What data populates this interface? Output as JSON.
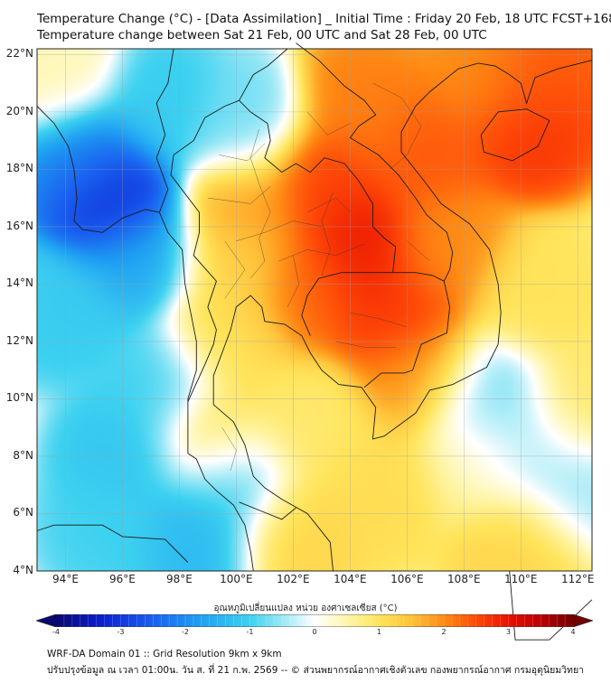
{
  "title_line1": "Temperature Change (°C) - [Data Assimilation] _ Initial Time : Friday 20 Feb, 18 UTC FCST+168",
  "title_line2": "Temperature change between Sat 21 Feb, 00 UTC and Sat 28 Feb, 00 UTC",
  "map": {
    "lon_range": [
      93,
      112.5
    ],
    "lat_range": [
      4,
      22.2
    ],
    "lat_ticks": [
      "22°N",
      "20°N",
      "18°N",
      "16°N",
      "14°N",
      "12°N",
      "10°N",
      "8°N",
      "6°N",
      "4°N"
    ],
    "lat_values": [
      22,
      20,
      18,
      16,
      14,
      12,
      10,
      8,
      6,
      4
    ],
    "lon_ticks": [
      "94°E",
      "96°E",
      "98°E",
      "100°E",
      "102°E",
      "104°E",
      "106°E",
      "108°E",
      "110°E",
      "112°E"
    ],
    "lon_values": [
      94,
      96,
      98,
      100,
      102,
      104,
      106,
      108,
      110,
      112
    ],
    "field_blobs": [
      {
        "lon": 104.3,
        "lat": 15.3,
        "value": 3.0
      },
      {
        "lon": 103.0,
        "lat": 17.5,
        "value": 2.6
      },
      {
        "lon": 105.6,
        "lat": 13.0,
        "value": 2.7
      },
      {
        "lon": 106.6,
        "lat": 18.6,
        "value": 2.4
      },
      {
        "lon": 102.5,
        "lat": 14.0,
        "value": 2.3
      },
      {
        "lon": 104.5,
        "lat": 20.3,
        "value": 2.1
      },
      {
        "lon": 107.3,
        "lat": 15.2,
        "value": 2.0
      },
      {
        "lon": 110.3,
        "lat": 19.5,
        "value": 2.7
      },
      {
        "lon": 110.8,
        "lat": 21.5,
        "value": 2.4
      },
      {
        "lon": 108.8,
        "lat": 21.3,
        "value": 2.0
      },
      {
        "lon": 106.6,
        "lat": 10.8,
        "value": 1.9
      },
      {
        "lon": 100.3,
        "lat": 16.6,
        "value": 1.8
      },
      {
        "lon": 100.0,
        "lat": 14.5,
        "value": 1.2
      },
      {
        "lon": 99.6,
        "lat": 12.0,
        "value": 1.1
      },
      {
        "lon": 99.3,
        "lat": 8.6,
        "value": 1.3
      },
      {
        "lon": 102.0,
        "lat": 5.5,
        "value": 1.2
      },
      {
        "lon": 102.5,
        "lat": 9.0,
        "value": 0.9
      },
      {
        "lon": 110.5,
        "lat": 13.5,
        "value": 1.0
      },
      {
        "lon": 112.0,
        "lat": 9.8,
        "value": 0.9
      },
      {
        "lon": 110.0,
        "lat": 5.0,
        "value": 1.2
      },
      {
        "lon": 105.0,
        "lat": 7.0,
        "value": 1.1
      },
      {
        "lon": 108.5,
        "lat": 8.0,
        "value": 0.6
      },
      {
        "lon": 95.6,
        "lat": 17.0,
        "value": -3.4
      },
      {
        "lon": 94.6,
        "lat": 18.2,
        "value": -2.0
      },
      {
        "lon": 96.6,
        "lat": 15.0,
        "value": -1.6
      },
      {
        "lon": 94.0,
        "lat": 13.0,
        "value": -1.1
      },
      {
        "lon": 96.0,
        "lat": 8.0,
        "value": -1.2
      },
      {
        "lon": 97.3,
        "lat": 10.5,
        "value": -1.0
      },
      {
        "lon": 95.5,
        "lat": 5.5,
        "value": -1.0
      },
      {
        "lon": 98.5,
        "lat": 5.2,
        "value": -1.4
      },
      {
        "lon": 99.8,
        "lat": 7.2,
        "value": -1.3
      },
      {
        "lon": 97.5,
        "lat": 20.2,
        "value": -1.1
      },
      {
        "lon": 100.2,
        "lat": 19.6,
        "value": -0.7
      },
      {
        "lon": 108.7,
        "lat": 10.0,
        "value": -0.9
      },
      {
        "lon": 109.8,
        "lat": 8.5,
        "value": -0.6
      },
      {
        "lon": 111.8,
        "lat": 7.0,
        "value": -0.5
      },
      {
        "lon": 93.6,
        "lat": 21.3,
        "value": 0.4
      }
    ]
  },
  "colorbar": {
    "label": "อุณหภูมิเปลี่ยนแปลง หน่วย องศาเซลเซียส (°C)",
    "min": -4,
    "max": 4,
    "tick_labels": [
      "-4",
      "-3",
      "-2",
      "-1",
      "0",
      "1",
      "2",
      "3",
      "4"
    ],
    "tick_values": [
      -4,
      -3,
      -2,
      -1,
      0,
      1,
      2,
      3,
      4
    ],
    "stops": [
      {
        "v": -4.0,
        "c": "#08086e"
      },
      {
        "v": -3.3,
        "c": "#0a1fcf"
      },
      {
        "v": -2.5,
        "c": "#1a60f0"
      },
      {
        "v": -1.8,
        "c": "#1e9ef2"
      },
      {
        "v": -1.0,
        "c": "#3cd1f0"
      },
      {
        "v": -0.5,
        "c": "#9ae8f6"
      },
      {
        "v": 0.0,
        "c": "#ffffff"
      },
      {
        "v": 0.5,
        "c": "#fff5a8"
      },
      {
        "v": 1.0,
        "c": "#ffe45a"
      },
      {
        "v": 1.5,
        "c": "#ffc23a"
      },
      {
        "v": 2.0,
        "c": "#ff8a14"
      },
      {
        "v": 2.5,
        "c": "#ff4a08"
      },
      {
        "v": 3.0,
        "c": "#ea1000"
      },
      {
        "v": 3.5,
        "c": "#b90000"
      },
      {
        "v": 4.0,
        "c": "#700000"
      }
    ]
  },
  "footer_line1": "WRF-DA Domain 01 :: Grid Resolution 9km x 9km",
  "footer_line2": "ปรับปรุงข้อมูล ณ เวลา 01:00น. วัน ส. ที่ 21 ก.พ. 2569 -- © ส่วนพยากรณ์อากาศเชิงตัวเลข กองพยากรณ์อากาศ กรมอุตุนิยมวิทยา",
  "coastlines": [
    {
      "name": "indochina-coast",
      "pts": [
        [
          97.8,
          22.2
        ],
        [
          97.6,
          21.0
        ],
        [
          97.2,
          20.3
        ],
        [
          97.5,
          19.2
        ],
        [
          97.2,
          18.4
        ],
        [
          97.6,
          17.3
        ],
        [
          97.3,
          16.5
        ],
        [
          97.6,
          15.8
        ],
        [
          98.1,
          15.2
        ],
        [
          98.2,
          14.0
        ],
        [
          98.4,
          13.0
        ],
        [
          98.6,
          12.0
        ],
        [
          98.6,
          11.0
        ],
        [
          98.3,
          10.0
        ],
        [
          98.3,
          9.0
        ],
        [
          98.3,
          8.1
        ],
        [
          98.6,
          7.9
        ],
        [
          98.9,
          7.2
        ],
        [
          99.3,
          6.8
        ],
        [
          99.9,
          6.3
        ],
        [
          100.3,
          5.6
        ],
        [
          100.5,
          4.7
        ],
        [
          100.6,
          4.0
        ]
      ]
    },
    {
      "name": "gulf-of-thailand",
      "pts": [
        [
          103.4,
          4.0
        ],
        [
          103.3,
          5.0
        ],
        [
          102.5,
          6.0
        ],
        [
          101.6,
          6.5
        ],
        [
          101.0,
          6.9
        ],
        [
          100.6,
          7.3
        ],
        [
          100.3,
          8.4
        ],
        [
          99.9,
          9.2
        ],
        [
          99.2,
          9.8
        ],
        [
          99.2,
          10.8
        ],
        [
          99.5,
          11.6
        ],
        [
          99.8,
          12.4
        ],
        [
          100.0,
          13.2
        ],
        [
          100.5,
          13.6
        ],
        [
          100.9,
          13.2
        ],
        [
          101.0,
          12.7
        ],
        [
          101.7,
          12.6
        ],
        [
          102.3,
          12.2
        ],
        [
          102.6,
          11.6
        ],
        [
          103.0,
          11.0
        ],
        [
          103.6,
          10.5
        ],
        [
          104.4,
          10.4
        ],
        [
          104.9,
          9.7
        ],
        [
          104.8,
          8.6
        ],
        [
          105.2,
          8.7
        ],
        [
          106.3,
          9.5
        ],
        [
          106.8,
          10.3
        ],
        [
          107.6,
          10.5
        ],
        [
          108.8,
          11.1
        ],
        [
          109.2,
          11.9
        ],
        [
          109.3,
          13.0
        ],
        [
          109.2,
          14.0
        ],
        [
          108.9,
          15.2
        ],
        [
          108.2,
          16.1
        ],
        [
          107.2,
          16.8
        ],
        [
          106.6,
          17.6
        ],
        [
          105.8,
          18.6
        ],
        [
          105.8,
          19.3
        ],
        [
          106.3,
          20.2
        ],
        [
          106.8,
          20.7
        ],
        [
          107.8,
          21.5
        ],
        [
          108.5,
          21.7
        ],
        [
          109.1,
          21.6
        ],
        [
          109.6,
          21.3
        ],
        [
          110.0,
          21.0
        ],
        [
          110.2,
          20.3
        ],
        [
          110.5,
          21.2
        ],
        [
          111.3,
          21.5
        ],
        [
          112.5,
          21.8
        ]
      ]
    },
    {
      "name": "hainan",
      "pts": [
        [
          108.6,
          19.2
        ],
        [
          109.2,
          20.0
        ],
        [
          110.2,
          20.1
        ],
        [
          111.0,
          19.7
        ],
        [
          110.6,
          18.8
        ],
        [
          109.7,
          18.3
        ],
        [
          108.7,
          18.6
        ],
        [
          108.6,
          19.2
        ]
      ]
    },
    {
      "name": "borneo-sarawak",
      "pts": [
        [
          109.6,
          4.0
        ],
        [
          109.8,
          1.6
        ],
        [
          111.0,
          1.6
        ],
        [
          112.5,
          3.0
        ]
      ]
    },
    {
      "name": "sumatra-tip",
      "pts": [
        [
          93.0,
          5.4
        ],
        [
          93.6,
          5.6
        ],
        [
          95.3,
          5.6
        ],
        [
          96.0,
          5.2
        ],
        [
          97.5,
          5.1
        ],
        [
          98.3,
          4.3
        ]
      ]
    },
    {
      "name": "myanmar-west",
      "pts": [
        [
          93.0,
          20.2
        ],
        [
          93.6,
          19.6
        ],
        [
          94.1,
          18.8
        ],
        [
          94.3,
          18.0
        ],
        [
          94.4,
          17.0
        ],
        [
          94.3,
          16.2
        ],
        [
          94.6,
          15.9
        ],
        [
          95.3,
          15.8
        ],
        [
          96.0,
          16.3
        ],
        [
          96.8,
          16.6
        ],
        [
          97.3,
          16.5
        ]
      ]
    }
  ],
  "borders": [
    {
      "name": "thailand-myanmar",
      "pts": [
        [
          98.3,
          9.9
        ],
        [
          98.9,
          11.2
        ],
        [
          99.2,
          11.9
        ],
        [
          99.3,
          12.4
        ],
        [
          99.0,
          13.2
        ],
        [
          99.3,
          14.1
        ],
        [
          98.5,
          15.0
        ],
        [
          98.7,
          15.8
        ],
        [
          98.7,
          16.5
        ],
        [
          97.7,
          17.8
        ],
        [
          97.8,
          18.5
        ],
        [
          98.5,
          19.0
        ],
        [
          98.9,
          19.8
        ],
        [
          99.6,
          20.2
        ],
        [
          100.1,
          20.4
        ]
      ]
    },
    {
      "name": "thailand-laos",
      "pts": [
        [
          100.1,
          20.4
        ],
        [
          100.5,
          20.0
        ],
        [
          101.1,
          19.6
        ],
        [
          101.2,
          19.0
        ],
        [
          101.0,
          18.4
        ],
        [
          101.6,
          17.9
        ],
        [
          102.1,
          18.2
        ],
        [
          102.6,
          17.9
        ],
        [
          103.1,
          18.4
        ],
        [
          103.8,
          18.2
        ],
        [
          104.3,
          17.6
        ],
        [
          104.8,
          16.8
        ],
        [
          104.8,
          16.0
        ],
        [
          105.2,
          15.6
        ],
        [
          105.6,
          15.3
        ],
        [
          105.5,
          14.4
        ]
      ]
    },
    {
      "name": "thailand-cambodia",
      "pts": [
        [
          105.5,
          14.4
        ],
        [
          104.8,
          14.4
        ],
        [
          103.7,
          14.4
        ],
        [
          102.9,
          14.2
        ],
        [
          102.5,
          13.6
        ],
        [
          102.3,
          12.9
        ],
        [
          102.6,
          12.2
        ]
      ]
    },
    {
      "name": "laos-vietnam",
      "pts": [
        [
          102.1,
          22.4
        ],
        [
          102.9,
          21.8
        ],
        [
          103.8,
          20.9
        ],
        [
          104.5,
          20.4
        ],
        [
          104.9,
          19.9
        ],
        [
          104.3,
          19.5
        ],
        [
          104.0,
          19.1
        ],
        [
          105.0,
          18.5
        ],
        [
          105.7,
          17.8
        ],
        [
          106.3,
          17.0
        ],
        [
          106.7,
          16.4
        ],
        [
          107.4,
          15.8
        ],
        [
          107.6,
          15.1
        ],
        [
          107.5,
          14.5
        ],
        [
          107.3,
          14.1
        ]
      ]
    },
    {
      "name": "cambodia-laos",
      "pts": [
        [
          105.5,
          14.4
        ],
        [
          106.3,
          14.4
        ],
        [
          106.9,
          14.3
        ],
        [
          107.3,
          14.1
        ]
      ]
    },
    {
      "name": "cambodia-vietnam",
      "pts": [
        [
          107.3,
          14.1
        ],
        [
          107.5,
          13.2
        ],
        [
          107.4,
          12.3
        ],
        [
          106.5,
          11.9
        ],
        [
          106.2,
          11.0
        ],
        [
          105.9,
          10.9
        ],
        [
          105.1,
          10.9
        ],
        [
          104.5,
          10.4
        ]
      ]
    },
    {
      "name": "laos-myanmar",
      "pts": [
        [
          100.1,
          20.4
        ],
        [
          100.6,
          21.3
        ],
        [
          101.1,
          21.6
        ],
        [
          101.8,
          22.2
        ]
      ]
    },
    {
      "name": "thailand-malaysia",
      "pts": [
        [
          100.1,
          6.4
        ],
        [
          101.1,
          6.0
        ],
        [
          101.6,
          5.8
        ],
        [
          102.1,
          6.2
        ]
      ]
    }
  ],
  "provinces": [
    {
      "pts": [
        [
          99.0,
          17.0
        ],
        [
          100.5,
          16.8
        ],
        [
          101.2,
          17.4
        ]
      ]
    },
    {
      "pts": [
        [
          100.0,
          15.5
        ],
        [
          101.0,
          15.8
        ],
        [
          102.0,
          16.2
        ],
        [
          103.0,
          16.0
        ]
      ]
    },
    {
      "pts": [
        [
          101.5,
          14.8
        ],
        [
          102.5,
          15.2
        ],
        [
          103.5,
          15.0
        ],
        [
          104.5,
          15.4
        ]
      ]
    },
    {
      "pts": [
        [
          102.5,
          16.5
        ],
        [
          103.5,
          17.0
        ],
        [
          104.0,
          16.5
        ]
      ]
    },
    {
      "pts": [
        [
          100.5,
          14.2
        ],
        [
          101.0,
          14.8
        ],
        [
          100.8,
          15.6
        ],
        [
          101.2,
          16.5
        ],
        [
          100.8,
          17.5
        ],
        [
          100.5,
          18.4
        ],
        [
          100.8,
          19.4
        ]
      ]
    },
    {
      "pts": [
        [
          99.4,
          18.5
        ],
        [
          100.4,
          18.3
        ],
        [
          101.0,
          18.9
        ]
      ]
    },
    {
      "pts": [
        [
          103.0,
          14.3
        ],
        [
          103.3,
          15.2
        ],
        [
          103.0,
          16.2
        ],
        [
          103.4,
          17.2
        ]
      ]
    },
    {
      "pts": [
        [
          101.8,
          13.2
        ],
        [
          102.2,
          14.0
        ],
        [
          102.0,
          15.0
        ]
      ]
    },
    {
      "pts": [
        [
          99.6,
          13.5
        ],
        [
          100.3,
          14.5
        ],
        [
          99.6,
          15.5
        ]
      ]
    },
    {
      "pts": [
        [
          104.0,
          13.0
        ],
        [
          105.0,
          12.8
        ],
        [
          106.0,
          12.5
        ]
      ]
    },
    {
      "pts": [
        [
          103.5,
          12.0
        ],
        [
          104.5,
          11.8
        ],
        [
          105.6,
          11.8
        ]
      ]
    },
    {
      "pts": [
        [
          105.4,
          18.0
        ],
        [
          106.0,
          18.5
        ],
        [
          106.5,
          19.5
        ],
        [
          105.8,
          20.5
        ],
        [
          104.8,
          21.0
        ]
      ]
    },
    {
      "pts": [
        [
          102.5,
          20.0
        ],
        [
          103.2,
          19.2
        ],
        [
          104.0,
          19.6
        ]
      ]
    },
    {
      "pts": [
        [
          106.0,
          15.5
        ],
        [
          106.8,
          14.8
        ]
      ]
    },
    {
      "pts": [
        [
          99.5,
          9.0
        ],
        [
          100.0,
          8.2
        ],
        [
          99.8,
          7.5
        ]
      ]
    }
  ]
}
